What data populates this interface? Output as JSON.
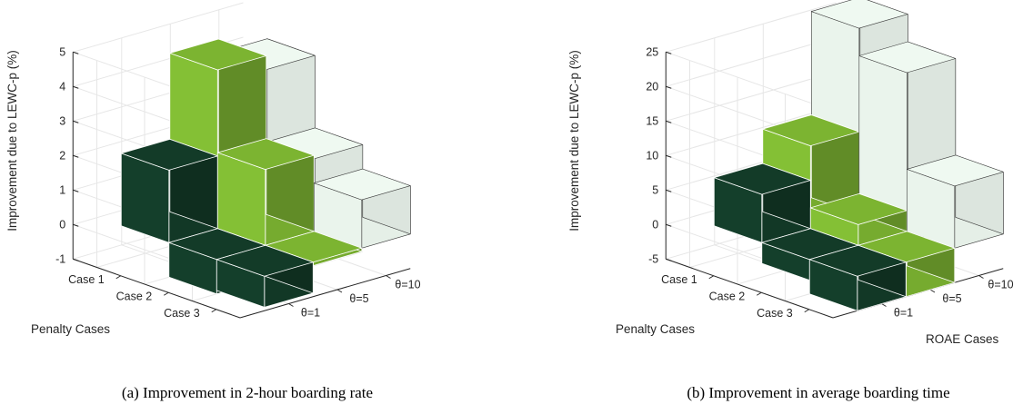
{
  "chart_data": [
    {
      "type": "bar3d",
      "caption": "(a) Improvement in 2-hour boarding rate",
      "zlabel": "Improvement due to LEWC-p (%)",
      "ylabel": "Penalty Cases",
      "xlabel": "",
      "row_categories": [
        "Case 1",
        "Case 2",
        "Case 3"
      ],
      "col_categories": [
        "θ=1",
        "θ=5",
        "θ=10"
      ],
      "zlim": [
        -1,
        5
      ],
      "zticks": [
        -1,
        0,
        1,
        2,
        3,
        4,
        5
      ],
      "grid": true,
      "values": [
        [
          2.1,
          4.6,
          4.2
        ],
        [
          -1.1,
          2.2,
          2.1
        ],
        [
          -0.9,
          -0.1,
          1.4
        ]
      ],
      "colors": {
        "theta_1": "#123826",
        "theta_5": "#76ab2f",
        "theta_10": "#eaf4ec"
      }
    },
    {
      "type": "bar3d",
      "caption": "(b) Improvement in average boarding time",
      "zlabel": "Improvement due to LEWC-p (%)",
      "ylabel": "Penalty Cases",
      "xlabel": "ROAE Cases",
      "row_categories": [
        "Case 1",
        "Case 2",
        "Case 3"
      ],
      "col_categories": [
        "θ=1",
        "θ=5",
        "θ=10"
      ],
      "zlim": [
        -5,
        25
      ],
      "zticks": [
        -5,
        0,
        5,
        10,
        15,
        20,
        25
      ],
      "grid": true,
      "values": [
        [
          7,
          12,
          27
        ],
        [
          -3,
          3,
          23
        ],
        [
          -6,
          -6,
          9
        ]
      ],
      "colors": {
        "theta_1": "#123826",
        "theta_5": "#76ab2f",
        "theta_10": "#eaf4ec"
      }
    }
  ]
}
